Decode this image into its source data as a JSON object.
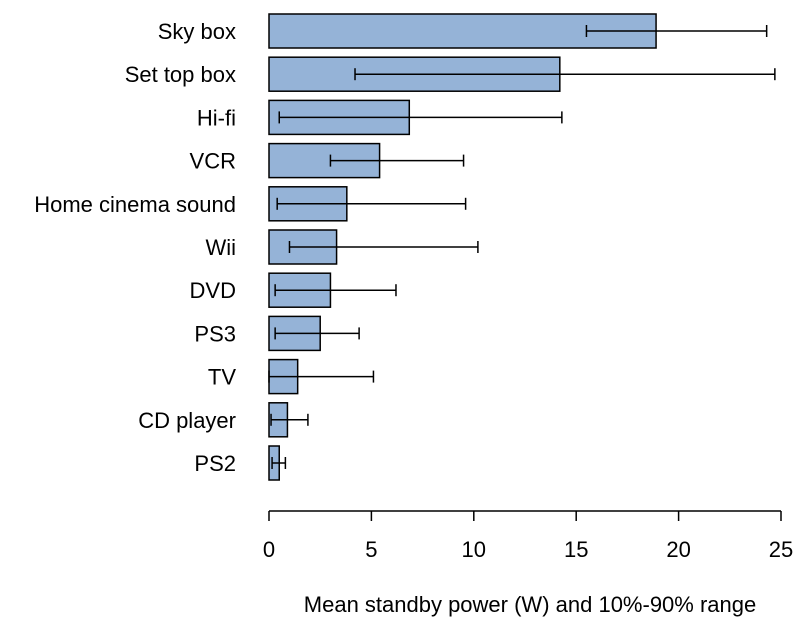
{
  "chart_data": {
    "type": "bar",
    "orientation": "horizontal",
    "categories": [
      "Sky box",
      "Set top box",
      "Hi-fi",
      "VCR",
      "Home cinema sound",
      "Wii",
      "DVD",
      "PS3",
      "TV",
      "CD player",
      "PS2"
    ],
    "values": [
      18.9,
      14.2,
      6.85,
      5.4,
      3.8,
      3.3,
      3.0,
      2.5,
      1.4,
      0.9,
      0.5
    ],
    "error_low": [
      15.5,
      4.2,
      0.5,
      3.0,
      0.4,
      1.0,
      0.3,
      0.3,
      0.0,
      0.1,
      0.15
    ],
    "error_high": [
      24.3,
      24.7,
      14.3,
      9.5,
      9.6,
      10.2,
      6.2,
      4.4,
      5.1,
      1.9,
      0.8
    ],
    "xlabel": "Mean standby power (W) and 10%-90% range",
    "ylabel": "",
    "title": "",
    "xlim": [
      0,
      25
    ],
    "xticks": [
      0,
      5,
      10,
      15,
      20,
      25
    ],
    "grid": false,
    "legend": "none",
    "bar_color": "#95B3D7",
    "bar_edge_color": "#000000"
  }
}
